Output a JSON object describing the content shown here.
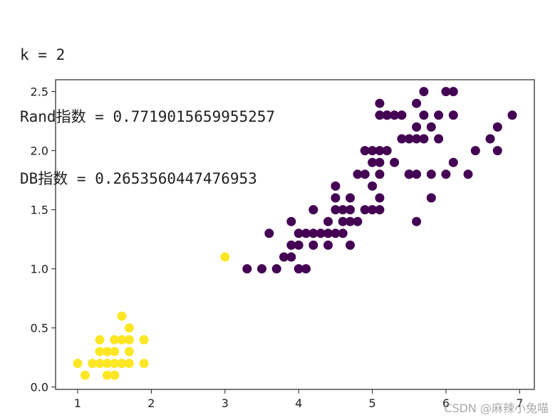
{
  "output": {
    "lines": [
      "k = 2",
      "Rand指数 = 0.7719015659955257",
      "DB指数 = 0.2653560447476953"
    ]
  },
  "watermark": "CSDN @麻辣小兔喵",
  "colors": {
    "cluster_0": "#440154",
    "cluster_1": "#fde725",
    "axis": "#222222",
    "background": "#ffffff"
  },
  "chart_data": {
    "type": "scatter",
    "title": "",
    "xlabel": "",
    "ylabel": "",
    "xlim": [
      0.7,
      7.2
    ],
    "ylim": [
      -0.02,
      2.6
    ],
    "xticks": [
      1,
      2,
      3,
      4,
      5,
      6,
      7
    ],
    "yticks": [
      0.0,
      0.5,
      1.0,
      1.5,
      2.0,
      2.5
    ],
    "xtick_labels": [
      "1",
      "2",
      "3",
      "4",
      "5",
      "6",
      "7"
    ],
    "ytick_labels": [
      "0.0",
      "0.5",
      "1.0",
      "1.5",
      "2.0",
      "2.5"
    ],
    "grid": false,
    "series": [
      {
        "color": "#fde725",
        "points": [
          [
            1.0,
            0.2
          ],
          [
            1.1,
            0.1
          ],
          [
            1.2,
            0.2
          ],
          [
            1.3,
            0.2
          ],
          [
            1.3,
            0.3
          ],
          [
            1.3,
            0.4
          ],
          [
            1.4,
            0.1
          ],
          [
            1.4,
            0.2
          ],
          [
            1.4,
            0.3
          ],
          [
            1.5,
            0.1
          ],
          [
            1.5,
            0.2
          ],
          [
            1.5,
            0.3
          ],
          [
            1.5,
            0.4
          ],
          [
            1.6,
            0.2
          ],
          [
            1.6,
            0.4
          ],
          [
            1.6,
            0.6
          ],
          [
            1.7,
            0.2
          ],
          [
            1.7,
            0.3
          ],
          [
            1.7,
            0.4
          ],
          [
            1.7,
            0.5
          ],
          [
            1.9,
            0.2
          ],
          [
            1.9,
            0.4
          ],
          [
            1.5,
            0.1
          ],
          [
            1.6,
            0.2
          ],
          [
            3.0,
            1.1
          ]
        ]
      },
      {
        "color": "#440154",
        "points": [
          [
            3.3,
            1.0
          ],
          [
            3.5,
            1.0
          ],
          [
            3.7,
            1.0
          ],
          [
            3.6,
            1.3
          ],
          [
            3.8,
            1.1
          ],
          [
            3.9,
            1.1
          ],
          [
            3.9,
            1.2
          ],
          [
            3.9,
            1.4
          ],
          [
            4.0,
            1.0
          ],
          [
            4.0,
            1.2
          ],
          [
            4.0,
            1.3
          ],
          [
            4.1,
            1.0
          ],
          [
            4.1,
            1.3
          ],
          [
            4.2,
            1.2
          ],
          [
            4.2,
            1.3
          ],
          [
            4.2,
            1.5
          ],
          [
            4.3,
            1.3
          ],
          [
            4.4,
            1.2
          ],
          [
            4.4,
            1.3
          ],
          [
            4.4,
            1.4
          ],
          [
            4.5,
            1.3
          ],
          [
            4.5,
            1.5
          ],
          [
            4.5,
            1.6
          ],
          [
            4.5,
            1.7
          ],
          [
            4.6,
            1.3
          ],
          [
            4.6,
            1.4
          ],
          [
            4.6,
            1.5
          ],
          [
            4.7,
            1.2
          ],
          [
            4.7,
            1.4
          ],
          [
            4.7,
            1.5
          ],
          [
            4.7,
            1.6
          ],
          [
            4.8,
            1.4
          ],
          [
            4.8,
            1.8
          ],
          [
            4.9,
            1.5
          ],
          [
            4.9,
            1.8
          ],
          [
            4.9,
            2.0
          ],
          [
            5.0,
            1.5
          ],
          [
            5.0,
            1.7
          ],
          [
            5.0,
            1.9
          ],
          [
            5.0,
            2.0
          ],
          [
            5.1,
            1.5
          ],
          [
            5.1,
            1.6
          ],
          [
            5.1,
            1.8
          ],
          [
            5.1,
            1.9
          ],
          [
            5.1,
            2.0
          ],
          [
            5.1,
            2.3
          ],
          [
            5.1,
            2.4
          ],
          [
            5.2,
            2.0
          ],
          [
            5.2,
            2.3
          ],
          [
            5.3,
            1.9
          ],
          [
            5.3,
            2.3
          ],
          [
            5.4,
            2.1
          ],
          [
            5.4,
            2.3
          ],
          [
            5.5,
            1.8
          ],
          [
            5.5,
            2.1
          ],
          [
            5.6,
            1.4
          ],
          [
            5.6,
            1.8
          ],
          [
            5.6,
            2.1
          ],
          [
            5.6,
            2.2
          ],
          [
            5.6,
            2.4
          ],
          [
            5.7,
            2.1
          ],
          [
            5.7,
            2.3
          ],
          [
            5.7,
            2.5
          ],
          [
            5.8,
            1.6
          ],
          [
            5.8,
            1.8
          ],
          [
            5.8,
            2.2
          ],
          [
            5.9,
            2.1
          ],
          [
            5.9,
            2.3
          ],
          [
            6.0,
            1.8
          ],
          [
            6.0,
            2.5
          ],
          [
            6.1,
            1.9
          ],
          [
            6.1,
            2.3
          ],
          [
            6.1,
            2.5
          ],
          [
            6.3,
            1.8
          ],
          [
            6.4,
            2.0
          ],
          [
            6.6,
            2.1
          ],
          [
            6.7,
            2.0
          ],
          [
            6.7,
            2.2
          ],
          [
            6.9,
            2.3
          ],
          [
            5.5,
            1.8
          ],
          [
            5.2,
            2.3
          ]
        ]
      }
    ]
  }
}
